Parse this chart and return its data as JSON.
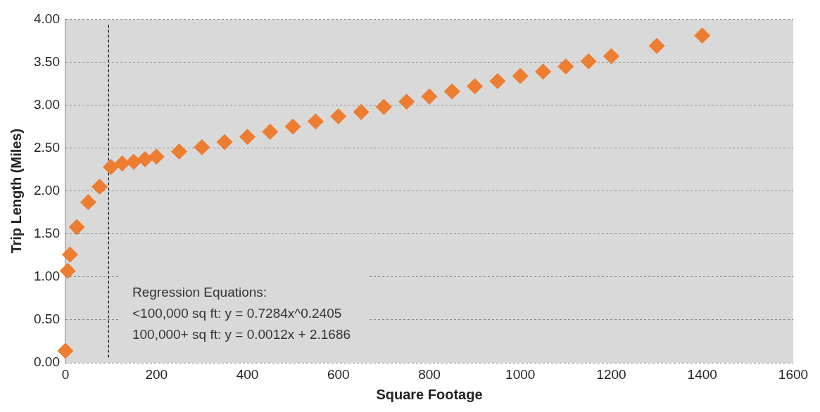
{
  "chart_data": {
    "type": "scatter",
    "xlabel": "Square Footage",
    "ylabel": "Trip Length (Miles)",
    "xlim": [
      0,
      1600
    ],
    "xticks": [
      0,
      200,
      400,
      600,
      800,
      1000,
      1200,
      1400,
      1600
    ],
    "ylim": [
      0,
      4
    ],
    "yticks": [
      {
        "value": 0,
        "label": "0.00"
      },
      {
        "value": 0.5,
        "label": "0.50"
      },
      {
        "value": 1,
        "label": "1.00"
      },
      {
        "value": 1.5,
        "label": "1.50"
      },
      {
        "value": 2,
        "label": "2.00"
      },
      {
        "value": 2.5,
        "label": "2.50"
      },
      {
        "value": 3,
        "label": "3.00"
      },
      {
        "value": 3.5,
        "label": "3.50"
      },
      {
        "value": 4,
        "label": "4.00"
      }
    ],
    "grid": "y",
    "legend": false,
    "marker": "diamond",
    "series": [
      {
        "color": "#ed7d31",
        "x": [
          0,
          5,
          10,
          25,
          50,
          75,
          100,
          125,
          150,
          175,
          200,
          250,
          300,
          350,
          400,
          450,
          500,
          550,
          600,
          650,
          700,
          750,
          800,
          850,
          900,
          950,
          1000,
          1050,
          1100,
          1150,
          1200,
          1300,
          1400
        ],
        "values": [
          0.14,
          1.07,
          1.26,
          1.58,
          1.87,
          2.05,
          2.28,
          2.32,
          2.34,
          2.37,
          2.4,
          2.46,
          2.51,
          2.57,
          2.63,
          2.69,
          2.75,
          2.81,
          2.87,
          2.92,
          2.98,
          3.04,
          3.1,
          3.16,
          3.22,
          3.28,
          3.34,
          3.39,
          3.45,
          3.51,
          3.57,
          3.69,
          3.81
        ]
      }
    ],
    "ref_lines": [
      {
        "axis": "x",
        "value": 95,
        "color": "#000000",
        "line_style": "dashed"
      }
    ],
    "annotations": [
      "Regression Equations:",
      "<100,000 sq ft: y = 0.7284x^0.2405",
      "100,000+ sq ft: y = 0.0012x + 2.1686"
    ]
  }
}
